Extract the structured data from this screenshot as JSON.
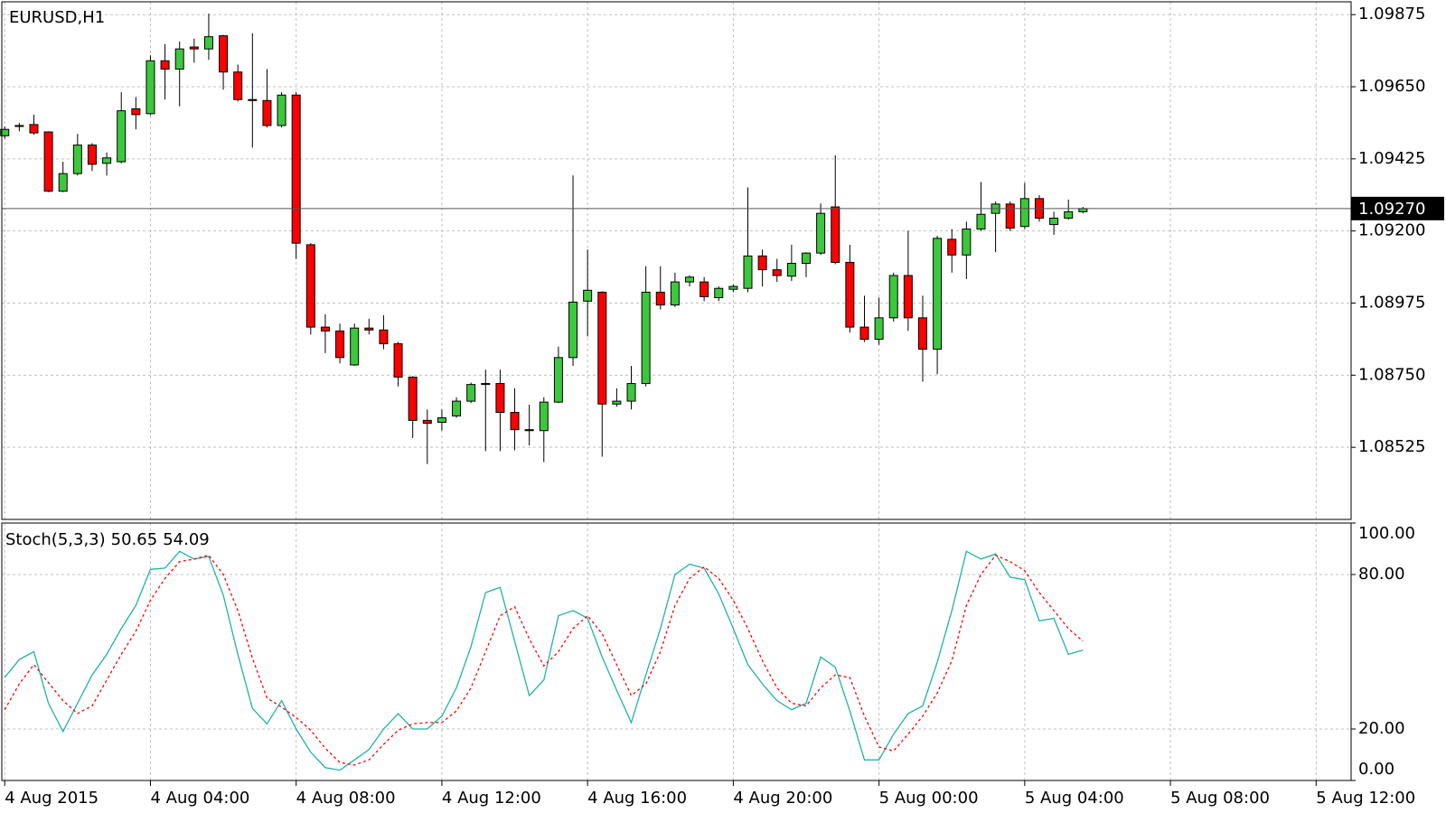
{
  "chart_data": [
    {
      "type": "candlestick",
      "title": "EURUSD,H1",
      "open": [
        1.09497,
        1.09526,
        1.09532,
        1.09509,
        1.09324,
        1.09379,
        1.09468,
        1.09411,
        1.09416,
        1.09581,
        1.09566,
        1.09731,
        1.09705,
        1.09774,
        1.09768,
        1.09809,
        1.09696,
        1.0961,
        1.09607,
        1.09529,
        1.09624,
        1.09157,
        1.089,
        1.08888,
        1.08782,
        1.08897,
        1.08891,
        1.08848,
        1.08744,
        1.08609,
        1.08603,
        1.08623,
        1.08669,
        1.08724,
        1.08724,
        1.08634,
        1.08577,
        1.08577,
        1.08666,
        1.08805,
        1.08981,
        1.09009,
        1.0866,
        1.08669,
        1.08724,
        1.09009,
        1.08969,
        1.09041,
        1.09041,
        1.08992,
        1.09018,
        1.09021,
        1.09122,
        1.09079,
        1.09059,
        1.09099,
        1.09131,
        1.09275,
        1.09102,
        1.089,
        1.08862,
        1.08929,
        1.09061,
        1.08929,
        1.08831,
        1.09174,
        1.09125,
        1.09206,
        1.09255,
        1.09284,
        1.09214,
        1.09301,
        1.0922,
        1.0924,
        1.0926
      ],
      "high": [
        1.09526,
        1.09537,
        1.09563,
        1.09511,
        1.09416,
        1.09503,
        1.09474,
        1.09445,
        1.09633,
        1.09618,
        1.09748,
        1.09783,
        1.09791,
        1.098,
        1.09878,
        1.09812,
        1.09719,
        1.09817,
        1.09705,
        1.09633,
        1.09633,
        1.09162,
        1.0894,
        1.08911,
        1.08911,
        1.08926,
        1.08937,
        1.08854,
        1.08747,
        1.08643,
        1.08643,
        1.08681,
        1.08727,
        1.08767,
        1.08767,
        1.08709,
        1.08658,
        1.08681,
        1.08839,
        1.09373,
        1.09142,
        1.09012,
        1.08709,
        1.08779,
        1.0909,
        1.0909,
        1.0907,
        1.09061,
        1.09056,
        1.09027,
        1.09033,
        1.09336,
        1.09142,
        1.09113,
        1.09157,
        1.09134,
        1.09286,
        1.09436,
        1.09157,
        1.08998,
        1.08992,
        1.0907,
        1.092,
        1.08998,
        1.09185,
        1.09206,
        1.09229,
        1.09353,
        1.09292,
        1.09292,
        1.0935,
        1.09312,
        1.0926,
        1.09298,
        1.09275
      ],
      "low": [
        1.09488,
        1.09511,
        1.095,
        1.09321,
        1.09321,
        1.09373,
        1.09387,
        1.09373,
        1.09411,
        1.09517,
        1.09561,
        1.0961,
        1.09589,
        1.09725,
        1.09734,
        1.09641,
        1.09604,
        1.0946,
        1.09523,
        1.09523,
        1.09113,
        1.08877,
        1.08819,
        1.08787,
        1.08779,
        1.08877,
        1.08831,
        1.08715,
        1.08554,
        1.08473,
        1.08577,
        1.08617,
        1.08663,
        1.08513,
        1.08513,
        1.08516,
        1.08531,
        1.08479,
        1.08663,
        1.08779,
        1.08871,
        1.08496,
        1.08652,
        1.08643,
        1.08715,
        1.08955,
        1.08963,
        1.09027,
        1.08981,
        1.08981,
        1.09009,
        1.09009,
        1.09027,
        1.09041,
        1.09044,
        1.09056,
        1.09125,
        1.09096,
        1.08883,
        1.08854,
        1.08845,
        1.08917,
        1.08888,
        1.0873,
        1.08753,
        1.0907,
        1.0905,
        1.092,
        1.09134,
        1.092,
        1.09206,
        1.09229,
        1.09188,
        1.09235,
        1.09255
      ],
      "close": [
        1.09517,
        1.09529,
        1.09506,
        1.09324,
        1.09379,
        1.09468,
        1.09408,
        1.09428,
        1.09575,
        1.09563,
        1.09731,
        1.09705,
        1.09768,
        1.09768,
        1.09806,
        1.09696,
        1.0961,
        1.09607,
        1.09529,
        1.09624,
        1.09162,
        1.089,
        1.08888,
        1.08805,
        1.08897,
        1.08891,
        1.08848,
        1.08744,
        1.08609,
        1.086,
        1.08617,
        1.08669,
        1.08721,
        1.08721,
        1.08634,
        1.0858,
        1.0858,
        1.08666,
        1.08805,
        1.08978,
        1.09015,
        1.0866,
        1.08669,
        1.08724,
        1.09009,
        1.08969,
        1.09041,
        1.09056,
        1.08995,
        1.09021,
        1.09027,
        1.09122,
        1.09079,
        1.09061,
        1.09099,
        1.09131,
        1.09255,
        1.09102,
        1.089,
        1.08862,
        1.08929,
        1.09061,
        1.08929,
        1.08831,
        1.09177,
        1.09125,
        1.09206,
        1.09252,
        1.09284,
        1.09209,
        1.09301,
        1.0924,
        1.0924,
        1.0926,
        1.0927
      ],
      "up_color": "#3cc83c",
      "down_color": "#ff0000",
      "wick_color": "#000000",
      "xlim": [
        -0.2,
        92.4
      ],
      "xticks": [
        {
          "value": 0,
          "label": "4 Aug 2015"
        },
        {
          "value": 10,
          "label": "4 Aug 04:00"
        },
        {
          "value": 20,
          "label": "4 Aug 08:00"
        },
        {
          "value": 30,
          "label": "4 Aug 12:00"
        },
        {
          "value": 40,
          "label": "4 Aug 16:00"
        },
        {
          "value": 50,
          "label": "4 Aug 20:00"
        },
        {
          "value": 60,
          "label": "5 Aug 00:00"
        },
        {
          "value": 70,
          "label": "5 Aug 04:00"
        },
        {
          "value": 80,
          "label": "5 Aug 08:00"
        },
        {
          "value": 90,
          "label": "5 Aug 12:00"
        }
      ],
      "ylim": [
        1.083,
        1.09915
      ],
      "yticks": [
        1.09875,
        {
          "value": 1.0965,
          "label": "1.09650"
        },
        1.09425,
        {
          "value": 1.092,
          "label": "1.09200"
        },
        1.08975,
        {
          "value": 1.0875,
          "label": "1.08750"
        },
        1.08525
      ],
      "grid": true,
      "last_price": {
        "value": 1.0927,
        "label": "1.09270"
      }
    },
    {
      "type": "line",
      "title": "Stoch(5,3,3)",
      "xlim": [
        -0.2,
        92.4
      ],
      "ylim": [
        0,
        100
      ],
      "yticks": [
        {
          "value": 0,
          "label": "0.00"
        },
        {
          "value": 20,
          "label": "20.00"
        },
        {
          "value": 80,
          "label": "80.00"
        },
        {
          "value": 100,
          "label": "100.00"
        }
      ],
      "grid": true,
      "series": [
        {
          "color": "#20b2aa",
          "dash": false,
          "values": [
            40,
            47,
            50,
            30,
            19,
            30,
            41,
            49,
            59,
            68,
            82,
            82.5,
            89,
            86,
            87,
            72,
            49,
            28,
            22,
            31,
            20,
            11,
            5,
            4,
            8,
            12,
            20,
            26,
            20,
            20,
            25,
            36,
            52,
            73,
            75,
            54,
            33,
            39,
            64,
            66,
            63,
            48,
            35,
            22.5,
            41,
            59,
            80,
            84,
            82.5,
            72.5,
            59,
            45,
            37.5,
            31,
            27.5,
            30,
            48,
            44,
            27,
            8,
            8,
            18,
            26,
            29,
            46,
            66,
            89,
            86,
            88,
            79,
            78,
            62,
            63,
            49,
            50.65
          ]
        },
        {
          "color": "#ff0000",
          "dash": true,
          "values": [
            27.5,
            37.5,
            45,
            38,
            31,
            26,
            29,
            39,
            49,
            58,
            70,
            78.5,
            85,
            86,
            87.5,
            80,
            66,
            47.5,
            32,
            28.5,
            24.5,
            19.5,
            12.5,
            7,
            6,
            8,
            14,
            19.5,
            22,
            22.5,
            22.5,
            27,
            36,
            50,
            64,
            67.5,
            55,
            44.5,
            50,
            59,
            64,
            57,
            45,
            33,
            37.5,
            50,
            68,
            78.5,
            83,
            78.5,
            70,
            59,
            46.5,
            36,
            30,
            29,
            36,
            41,
            40,
            25,
            13,
            11.5,
            18,
            25,
            34,
            46.5,
            68,
            80,
            87.5,
            85,
            81.5,
            73,
            66,
            59,
            54.09
          ]
        }
      ]
    }
  ]
}
